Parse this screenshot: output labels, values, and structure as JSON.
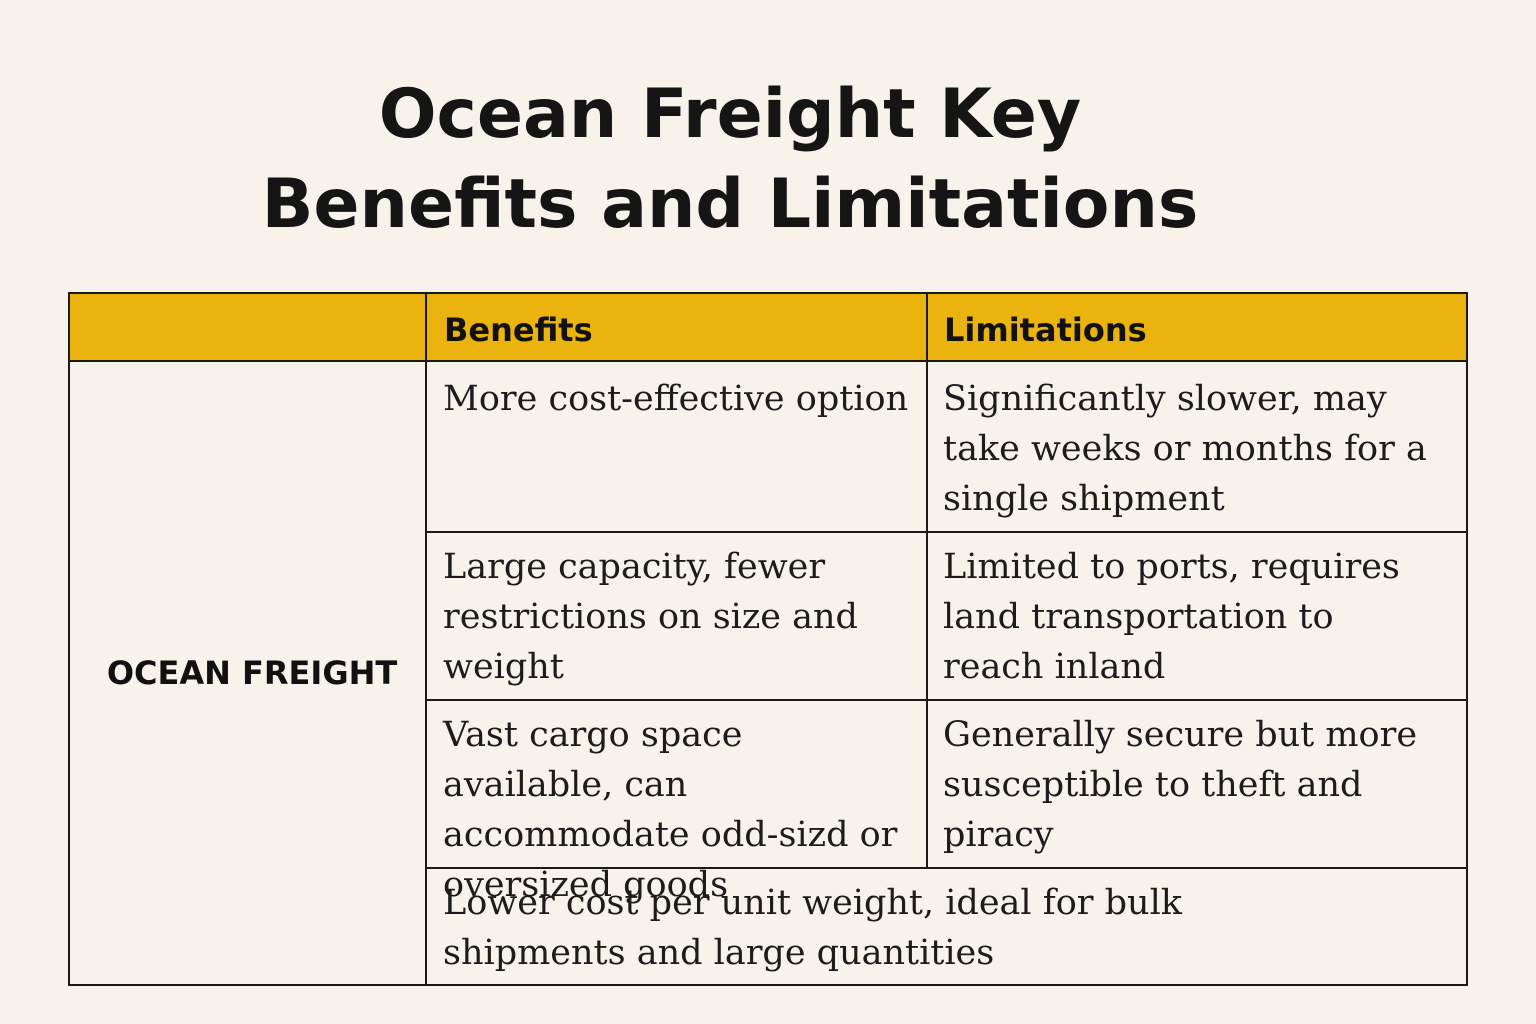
{
  "title": {
    "line1": "Ocean Freight Key",
    "line2": "Benefits and Limitations"
  },
  "table": {
    "headers": {
      "blank": "",
      "benefits": "Benefits",
      "limitations": "Limitations"
    },
    "row_label": "OCEAN FREIGHT",
    "rows": [
      {
        "benefit": "More cost-effective option",
        "limitation": "Significantly slower, may take weeks or months for a single shipment"
      },
      {
        "benefit": "Large capacity, fewer restrictions on size and weight",
        "limitation": "Limited to ports, requires land transportation to reach inland"
      },
      {
        "benefit": "Vast cargo space available, can accommodate odd-sizd or oversized goods",
        "limitation": "Generally secure but more susceptible to theft and piracy"
      }
    ],
    "footer_row": "Lower cost per unit weight, ideal for bulk shipments and large quantities"
  },
  "colors": {
    "background": "#f7f3ea",
    "header_fill": "#ebb30e",
    "border": "#1a1a1a",
    "text": "#151515"
  }
}
